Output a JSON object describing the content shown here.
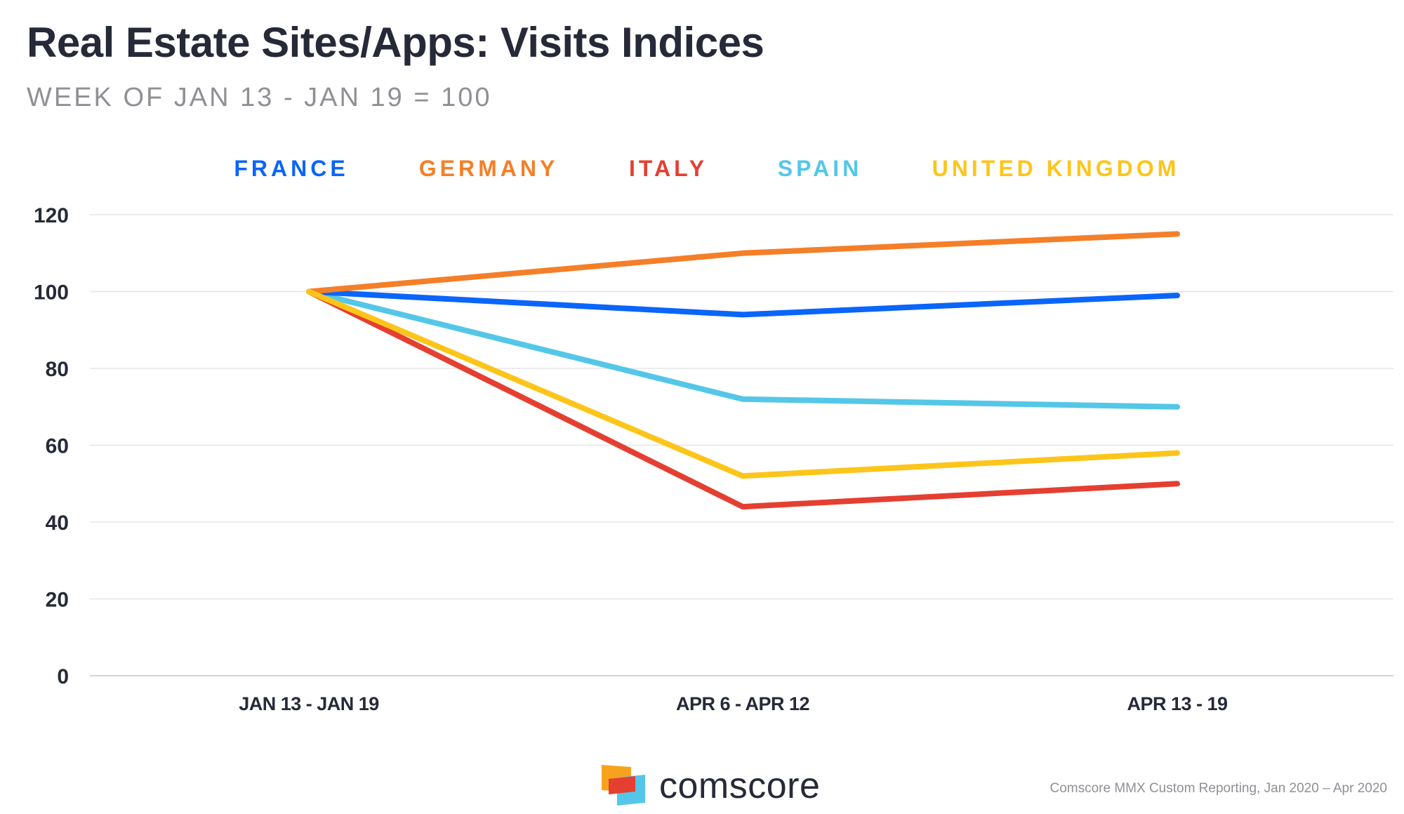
{
  "chart_data": {
    "type": "line",
    "title": "Real Estate Sites/Apps: Visits Indices",
    "subtitle": "WEEK OF JAN 13 - JAN 19 = 100",
    "categories": [
      "JAN 13 - JAN 19",
      "APR 6 - APR 12",
      "APR 13 - 19"
    ],
    "series": [
      {
        "name": "FRANCE",
        "color": "#0a65fa",
        "values": [
          100,
          94,
          99
        ]
      },
      {
        "name": "GERMANY",
        "color": "#f47f28",
        "values": [
          100,
          110,
          115
        ]
      },
      {
        "name": "ITALY",
        "color": "#e53f31",
        "values": [
          100,
          44,
          50
        ]
      },
      {
        "name": "SPAIN",
        "color": "#54c7e8",
        "values": [
          100,
          72,
          70
        ]
      },
      {
        "name": "UNITED KINGDOM",
        "color": "#fdc51a",
        "values": [
          100,
          52,
          58
        ]
      }
    ],
    "yticks": [
      "0",
      "20",
      "40",
      "60",
      "80",
      "100",
      "120"
    ],
    "ylim": [
      0,
      120
    ],
    "grid": true,
    "legend": "top"
  },
  "footer": {
    "brand": "comscore",
    "source": "Comscore MMX Custom Reporting, Jan 2020 – Apr 2020"
  }
}
